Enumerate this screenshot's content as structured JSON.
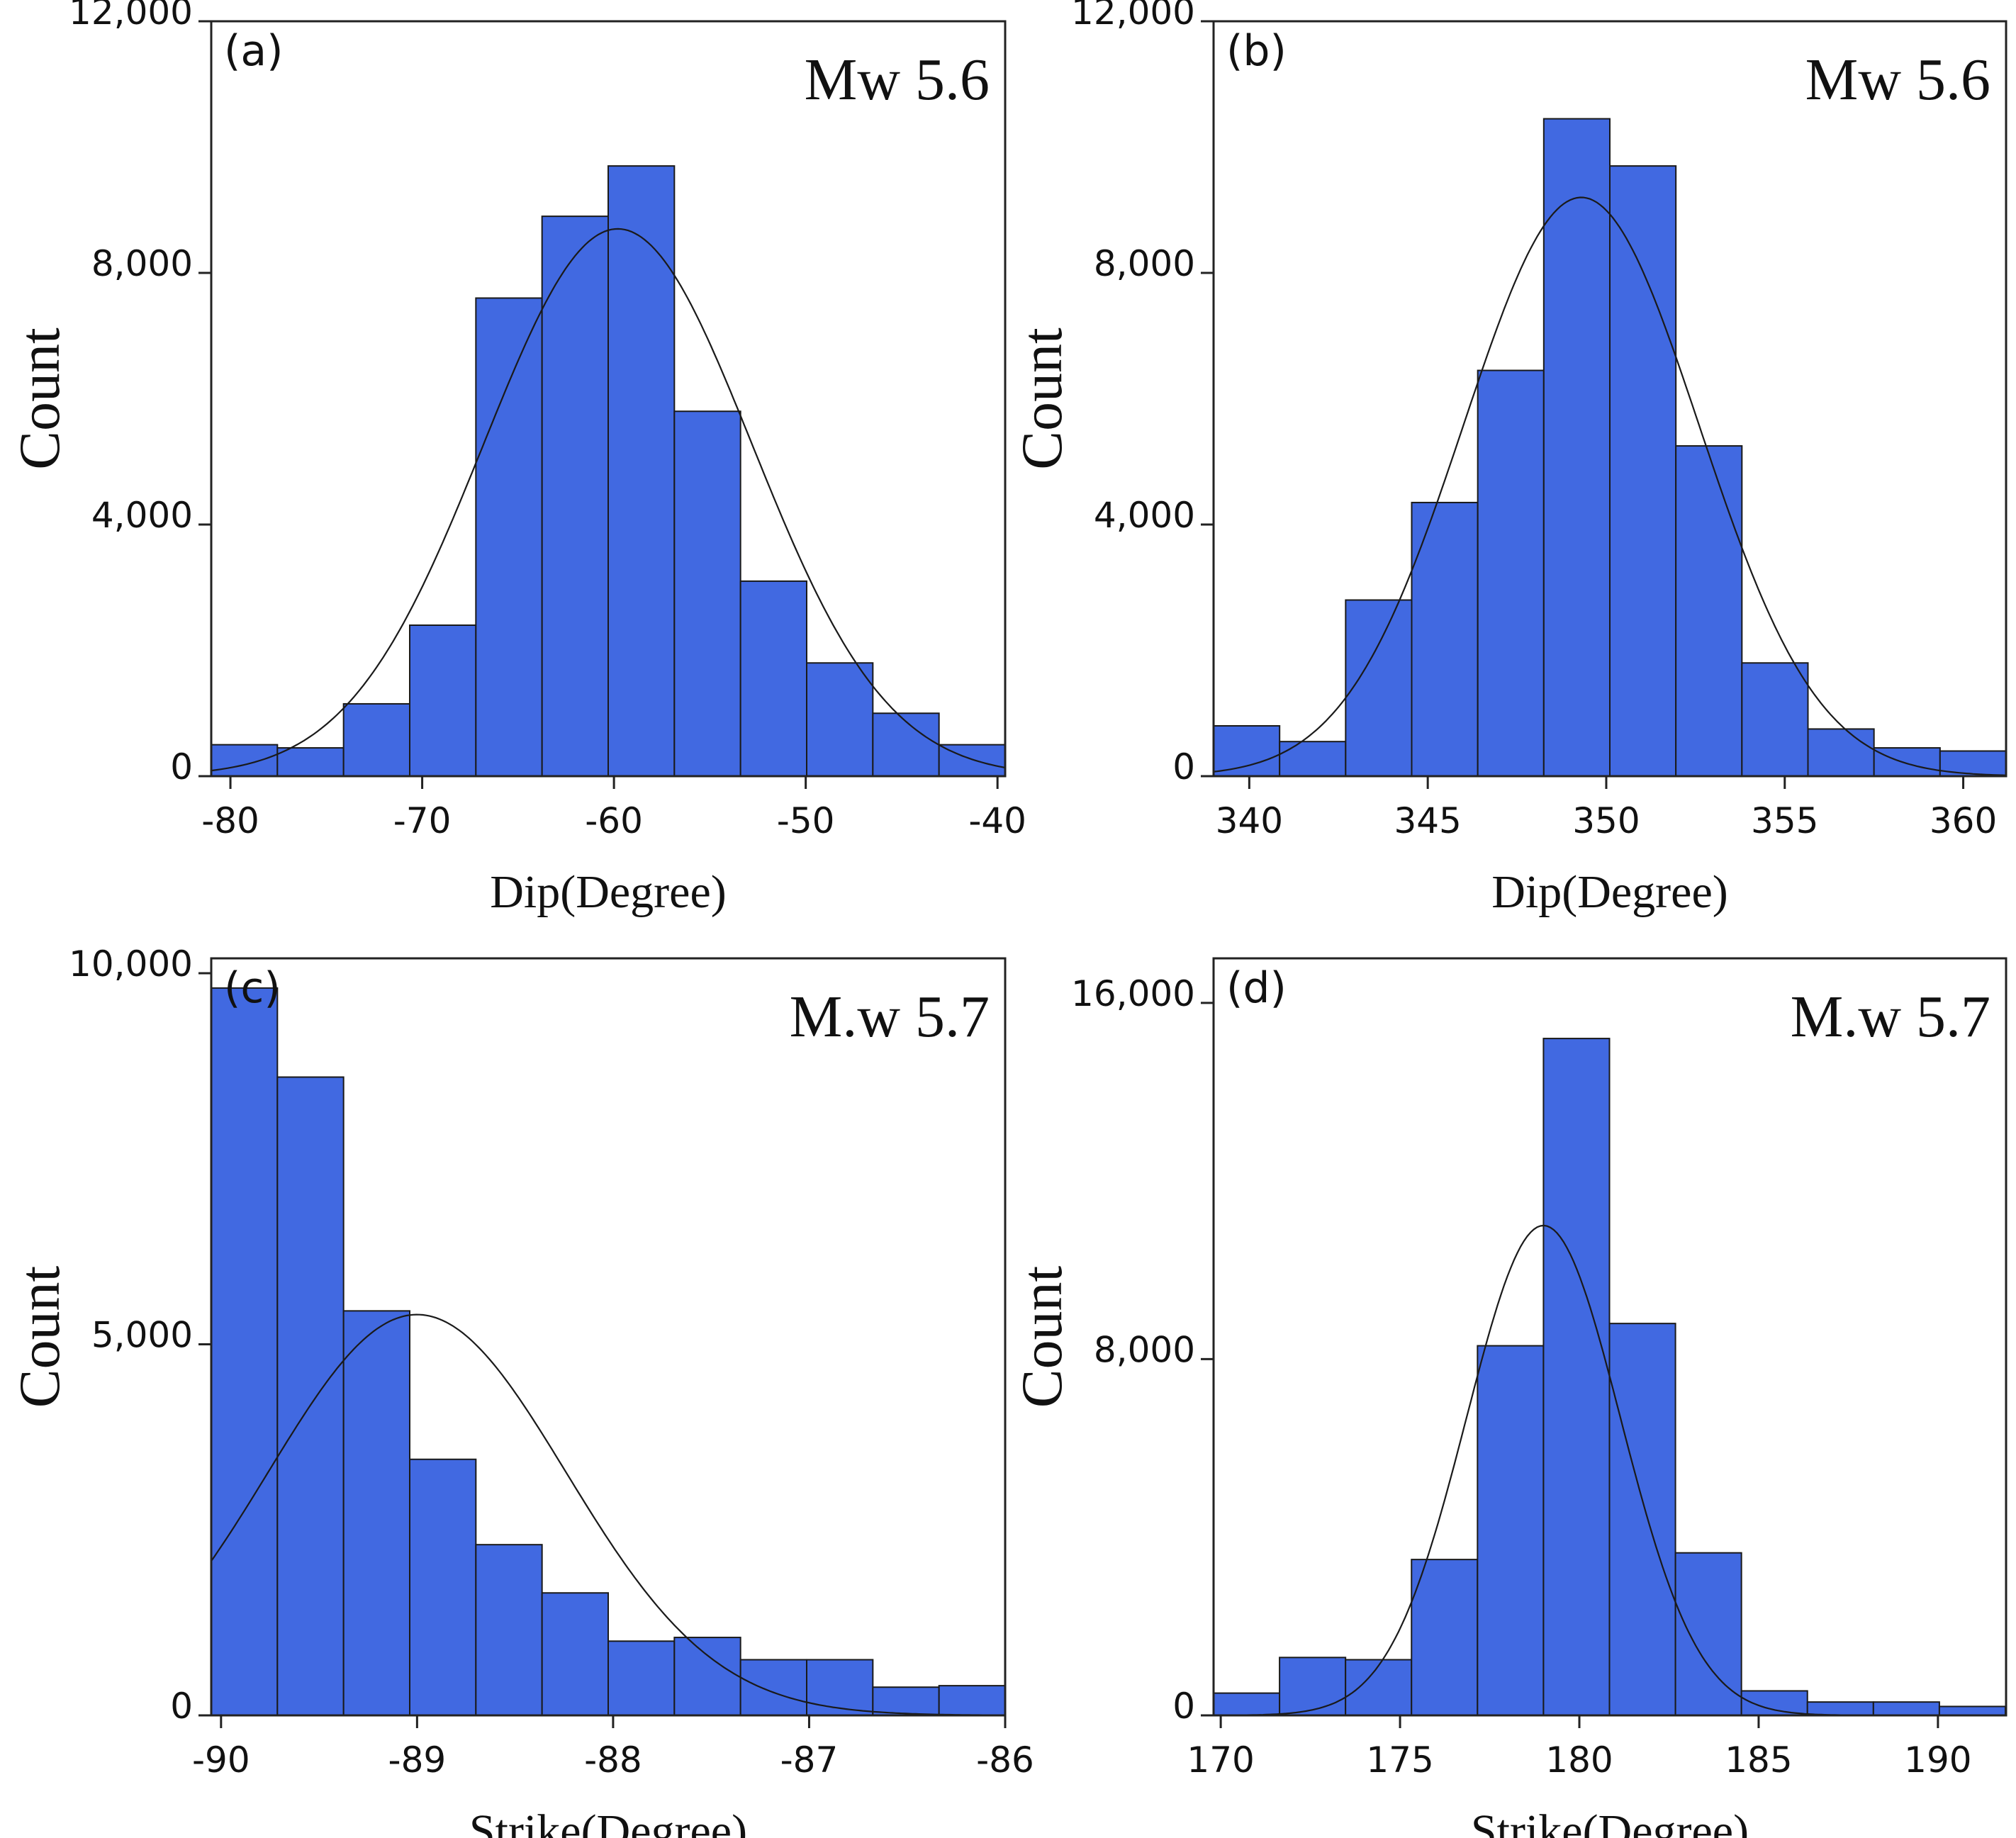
{
  "chart_data": [
    {
      "type": "bar",
      "panel_label": "(a)",
      "annotation": "Mw 5.6",
      "xlabel": "Dip(Degree)",
      "ylabel": "Count",
      "xlim": [
        -81,
        -39.6
      ],
      "ylim": [
        0,
        12000
      ],
      "x_ticks": [
        -80,
        -70,
        -60,
        -50,
        -40
      ],
      "x_tick_labels": [
        "-80",
        "-70",
        "-60",
        "-50",
        "-40"
      ],
      "y_ticks": [
        0,
        4000,
        8000,
        12000
      ],
      "y_tick_labels": [
        "0",
        "4,000",
        "8,000",
        "12,000"
      ],
      "bin_start": -81,
      "bin_width": 3.45,
      "values": [
        500,
        450,
        1150,
        2400,
        7600,
        8900,
        9700,
        5800,
        3100,
        1800,
        1000,
        500
      ],
      "fit": {
        "type": "normal",
        "mean": -59.8,
        "sd": 7.0,
        "peak": 8700
      }
    },
    {
      "type": "bar",
      "panel_label": "(b)",
      "annotation": "Mw 5.6",
      "xlabel": "Dip(Degree)",
      "ylabel": "Count",
      "xlim": [
        339,
        361.2
      ],
      "ylim": [
        0,
        12000
      ],
      "x_ticks": [
        340,
        345,
        350,
        355,
        360
      ],
      "x_tick_labels": [
        "340",
        "345",
        "350",
        "355",
        "360"
      ],
      "y_ticks": [
        0,
        4000,
        8000,
        12000
      ],
      "y_tick_labels": [
        "0",
        "4,000",
        "8,000",
        "12,000"
      ],
      "bin_start": 339,
      "bin_width": 1.85,
      "values": [
        800,
        550,
        2800,
        4350,
        6450,
        10450,
        9700,
        5250,
        1800,
        750,
        450,
        400
      ],
      "fit": {
        "type": "normal",
        "mean": 349.3,
        "sd": 3.3,
        "peak": 9200
      }
    },
    {
      "type": "bar",
      "panel_label": "(c)",
      "annotation": "M.w 5.7",
      "xlabel": "Strike(Degree)",
      "ylabel": "Count",
      "xlim": [
        -90.05,
        -86
      ],
      "ylim": [
        0,
        10200
      ],
      "x_ticks": [
        -90,
        -89,
        -88,
        -87,
        -86
      ],
      "x_tick_labels": [
        "-90",
        "-89",
        "-88",
        "-87",
        "-86"
      ],
      "y_ticks": [
        0,
        5000,
        10000
      ],
      "y_tick_labels": [
        "0",
        "5,000",
        "10,000"
      ],
      "bin_start": -90.05,
      "bin_width": 0.3375,
      "values": [
        9800,
        8600,
        5450,
        3450,
        2300,
        1650,
        1000,
        1050,
        750,
        750,
        380,
        400
      ],
      "fit": {
        "type": "normal",
        "mean": -89.0,
        "sd": 0.76,
        "peak": 5400
      }
    },
    {
      "type": "bar",
      "panel_label": "(d)",
      "annotation": "M.w 5.7",
      "xlabel": "Strike(Degree)",
      "ylabel": "Count",
      "xlim": [
        169.8,
        191.9
      ],
      "ylim": [
        0,
        17000
      ],
      "x_ticks": [
        170,
        175,
        180,
        185,
        190
      ],
      "x_tick_labels": [
        "170",
        "175",
        "180",
        "185",
        "190"
      ],
      "y_ticks": [
        0,
        8000,
        16000
      ],
      "y_tick_labels": [
        "0",
        "8,000",
        "16,000"
      ],
      "bin_start": 169.8,
      "bin_width": 1.84,
      "values": [
        500,
        1300,
        1250,
        3500,
        8300,
        15200,
        8800,
        3650,
        550,
        300,
        300,
        200
      ],
      "fit": {
        "type": "normal",
        "mean": 179.0,
        "sd": 2.15,
        "peak": 11000
      }
    }
  ]
}
